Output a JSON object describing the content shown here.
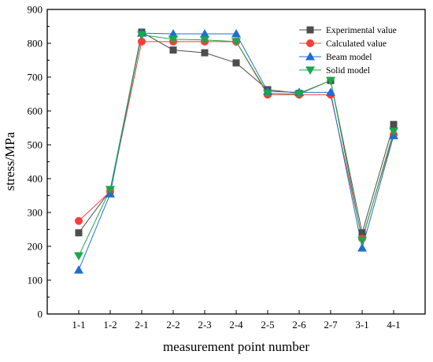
{
  "chart_data": {
    "type": "line",
    "xlabel": "measurement point number",
    "ylabel": "stress/MPa",
    "categories": [
      "1-1",
      "1-2",
      "2-1",
      "2-2",
      "2-3",
      "2-4",
      "2-5",
      "2-6",
      "2-7",
      "3-1",
      "4-1"
    ],
    "ylim": [
      0,
      900
    ],
    "yticks": [
      0,
      100,
      200,
      300,
      400,
      500,
      600,
      700,
      800,
      900
    ],
    "grid": false,
    "legend_position": "top-right",
    "series": [
      {
        "name": "Experimental value",
        "color": "#4d4d4d",
        "marker": "square",
        "values": [
          240,
          365,
          833,
          780,
          772,
          742,
          663,
          652,
          690,
          240,
          560
        ]
      },
      {
        "name": "Calculated value",
        "color": "#ff3b3b",
        "marker": "circle",
        "values": [
          275,
          362,
          805,
          805,
          805,
          805,
          648,
          648,
          648,
          223,
          530
        ]
      },
      {
        "name": "Beam model",
        "color": "#1f6fd0",
        "marker": "triangle-up",
        "values": [
          130,
          355,
          830,
          828,
          828,
          828,
          658,
          655,
          655,
          195,
          527
        ]
      },
      {
        "name": "Solid model",
        "color": "#1aa84a",
        "marker": "triangle-down",
        "values": [
          172,
          368,
          825,
          812,
          810,
          805,
          652,
          650,
          690,
          218,
          540
        ]
      }
    ]
  }
}
